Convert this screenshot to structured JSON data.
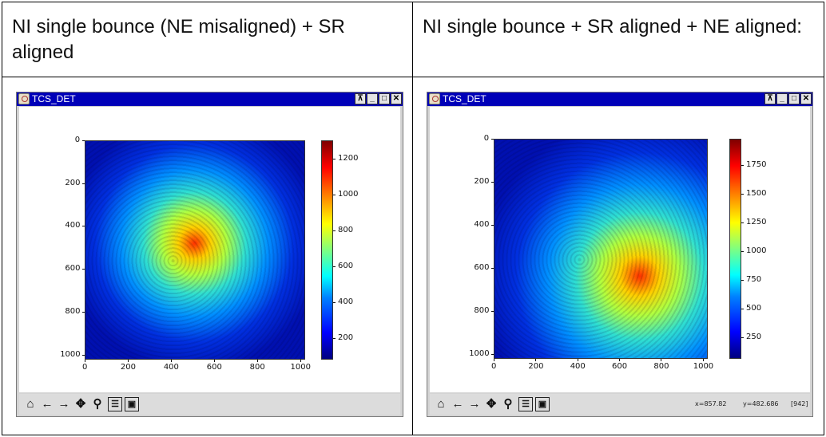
{
  "headers": [
    "NI single bounce (NE misaligned) + SR aligned",
    "NI single bounce + SR aligned + NE aligned:"
  ],
  "windows": [
    {
      "title": "TCS_DET",
      "title_buttons": [
        "⊼",
        "_",
        "□",
        "✕"
      ],
      "tools": [
        "home-icon",
        "back-arrow-icon",
        "forward-arrow-icon",
        "pan-icon",
        "zoom-icon",
        "configure-icon",
        "save-icon"
      ],
      "status": {
        "x": "",
        "y": "",
        "value": ""
      },
      "image": {
        "x_ticks": [
          "0",
          "200",
          "400",
          "600",
          "800",
          "1000"
        ],
        "y_ticks": [
          "0",
          "200",
          "400",
          "600",
          "800",
          "1000"
        ],
        "colorbar_ticks": [
          "1200",
          "1000",
          "800",
          "600",
          "400",
          "200"
        ],
        "colorbar_range": [
          80,
          1300
        ],
        "peak_center": [
          510,
          480
        ]
      }
    },
    {
      "title": "TCS_DET",
      "title_buttons": [
        "⊼",
        "_",
        "□",
        "✕"
      ],
      "tools": [
        "home-icon",
        "back-arrow-icon",
        "forward-arrow-icon",
        "pan-icon",
        "zoom-icon",
        "configure-icon",
        "save-icon"
      ],
      "status": {
        "x": "x=857.82",
        "y": "y=482.686",
        "value": "[942]"
      },
      "image": {
        "x_ticks": [
          "0",
          "200",
          "400",
          "600",
          "800",
          "1000"
        ],
        "y_ticks": [
          "0",
          "200",
          "400",
          "600",
          "800",
          "1000"
        ],
        "colorbar_ticks": [
          "1750",
          "1500",
          "1250",
          "1000",
          "750",
          "500",
          "250"
        ],
        "colorbar_range": [
          60,
          1980
        ],
        "peak_center": [
          700,
          640
        ]
      }
    }
  ]
}
